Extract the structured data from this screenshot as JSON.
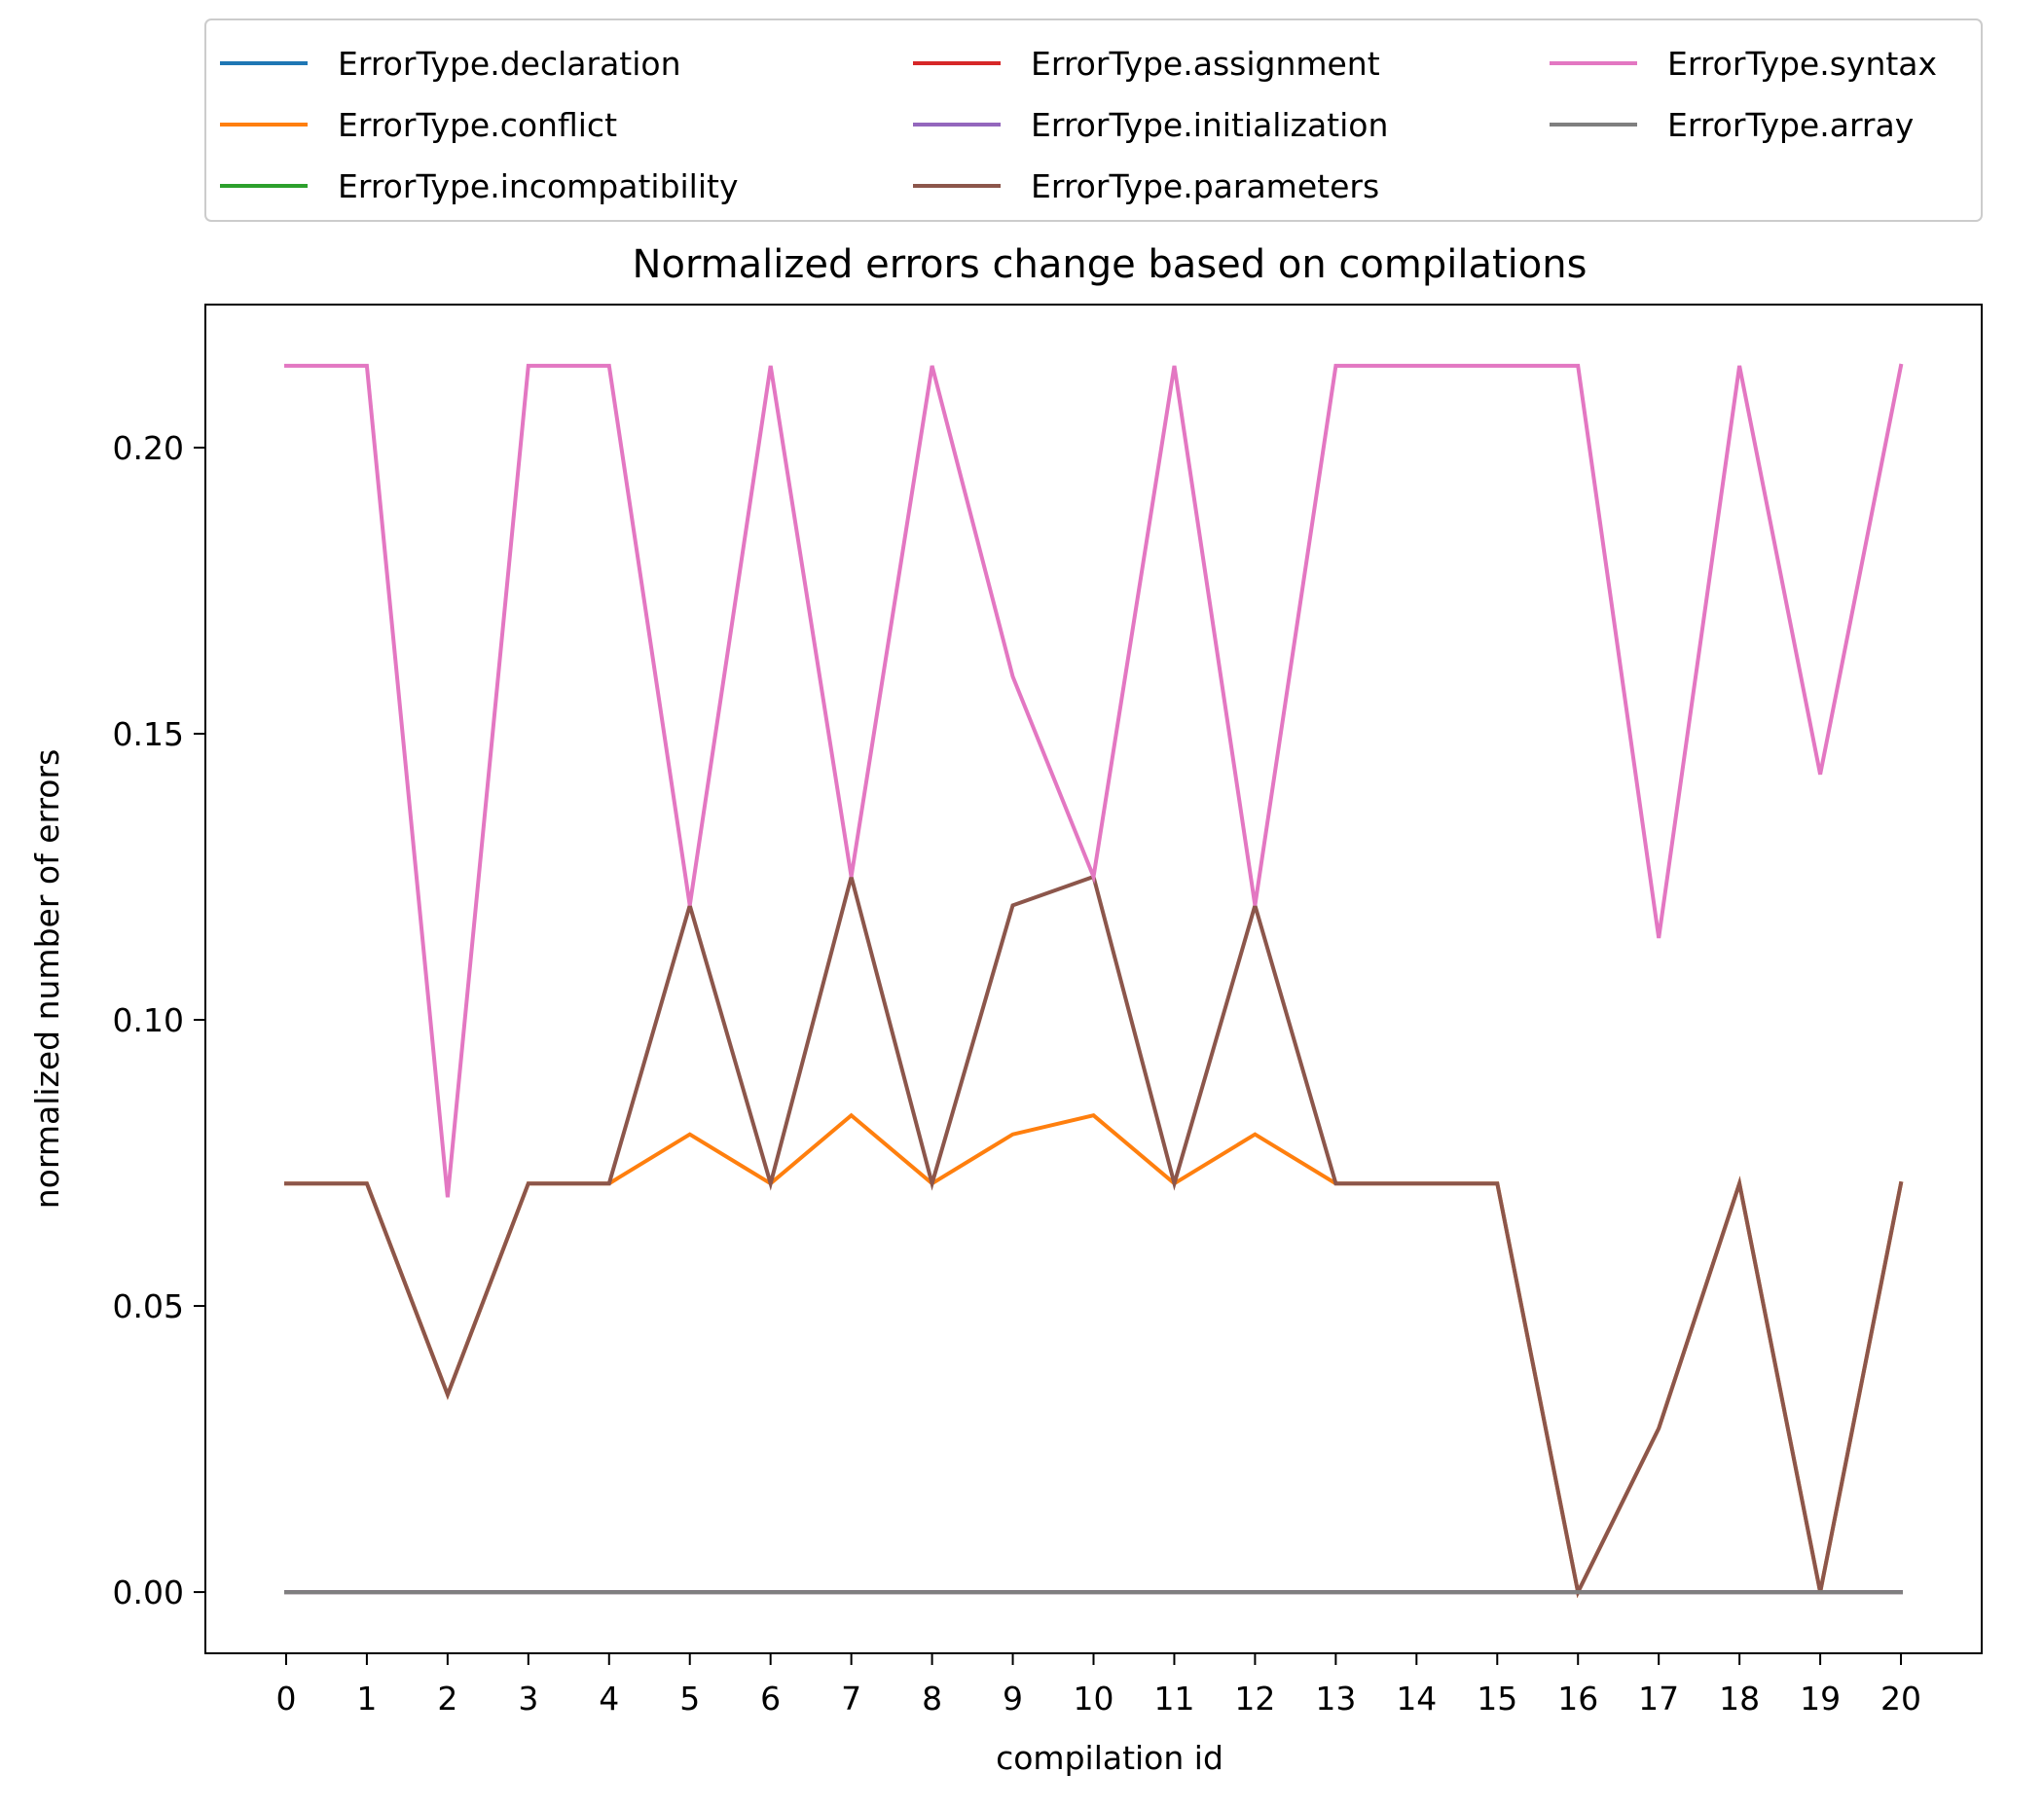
{
  "chart_data": {
    "type": "line",
    "title": "Normalized errors change based on compilations",
    "xlabel": "compilation id",
    "ylabel": "normalized number of errors",
    "x": [
      0,
      1,
      2,
      3,
      4,
      5,
      6,
      7,
      8,
      9,
      10,
      11,
      12,
      13,
      14,
      15,
      16,
      17,
      18,
      19,
      20
    ],
    "x_ticks": [
      "0",
      "1",
      "2",
      "3",
      "4",
      "5",
      "6",
      "7",
      "8",
      "9",
      "10",
      "11",
      "12",
      "13",
      "14",
      "15",
      "16",
      "17",
      "18",
      "19",
      "20"
    ],
    "y_ticks": [
      "0.00",
      "0.05",
      "0.10",
      "0.15",
      "0.20"
    ],
    "y_tick_values": [
      0,
      0.05,
      0.1,
      0.15,
      0.2
    ],
    "xlim": [
      -1,
      21
    ],
    "ylim": [
      -0.0107,
      0.225
    ],
    "grid": false,
    "legend_position": "above plot",
    "legend_columns": 3,
    "series": [
      {
        "name": "ErrorType.declaration",
        "color": "#1f77b4",
        "values": [
          0,
          0,
          0,
          0,
          0,
          0,
          0,
          0,
          0,
          0,
          0,
          0,
          0,
          0,
          0,
          0,
          0,
          0,
          0,
          0,
          0
        ]
      },
      {
        "name": "ErrorType.conflict",
        "color": "#ff7f0e",
        "values": [
          0.0714,
          0.0714,
          0.0345,
          0.0714,
          0.0714,
          0.08,
          0.0714,
          0.0833,
          0.0714,
          0.08,
          0.0833,
          0.0714,
          0.08,
          0.0714,
          0.0714,
          0.0714,
          0,
          0.0286,
          0.0714,
          0,
          0.0714
        ]
      },
      {
        "name": "ErrorType.incompatibility",
        "color": "#2ca02c",
        "values": [
          0,
          0,
          0,
          0,
          0,
          0,
          0,
          0,
          0,
          0,
          0,
          0,
          0,
          0,
          0,
          0,
          0,
          0,
          0,
          0,
          0
        ]
      },
      {
        "name": "ErrorType.assignment",
        "color": "#d62728",
        "values": [
          0,
          0,
          0,
          0,
          0,
          0,
          0,
          0,
          0,
          0,
          0,
          0,
          0,
          0,
          0,
          0,
          0,
          0,
          0,
          0,
          0
        ]
      },
      {
        "name": "ErrorType.initialization",
        "color": "#9467bd",
        "values": [
          0,
          0,
          0,
          0,
          0,
          0,
          0,
          0,
          0,
          0,
          0,
          0,
          0,
          0,
          0,
          0,
          0,
          0,
          0,
          0,
          0
        ]
      },
      {
        "name": "ErrorType.parameters",
        "color": "#8c564b",
        "values": [
          0.0714,
          0.0714,
          0.0345,
          0.0714,
          0.0714,
          0.12,
          0.0714,
          0.125,
          0.0714,
          0.12,
          0.125,
          0.0714,
          0.12,
          0.0714,
          0.0714,
          0.0714,
          0,
          0.0286,
          0.0714,
          0,
          0.0714
        ]
      },
      {
        "name": "ErrorType.syntax",
        "color": "#e377c2",
        "values": [
          0.2143,
          0.2143,
          0.069,
          0.2143,
          0.2143,
          0.12,
          0.2143,
          0.125,
          0.2143,
          0.16,
          0.125,
          0.2143,
          0.12,
          0.2143,
          0.2143,
          0.2143,
          0.2143,
          0.1143,
          0.2143,
          0.1429,
          0.2143
        ]
      },
      {
        "name": "ErrorType.array",
        "color": "#7f7f7f",
        "values": [
          0,
          0,
          0,
          0,
          0,
          0,
          0,
          0,
          0,
          0,
          0,
          0,
          0,
          0,
          0,
          0,
          0,
          0,
          0,
          0,
          0
        ]
      }
    ]
  }
}
